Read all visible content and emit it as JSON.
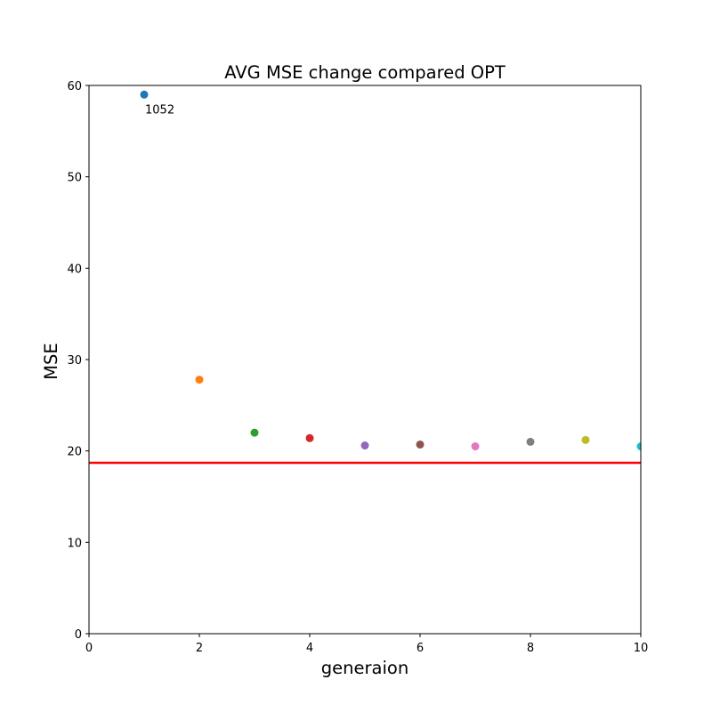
{
  "chart_data": {
    "type": "scatter",
    "title": "AVG MSE change compared OPT",
    "xlabel": "generaion",
    "ylabel": "MSE",
    "xlim": [
      0,
      10
    ],
    "ylim": [
      0,
      60
    ],
    "xticks": [
      "0",
      "2",
      "4",
      "6",
      "8",
      "10"
    ],
    "yticks": [
      "0",
      "10",
      "20",
      "30",
      "40",
      "50",
      "60"
    ],
    "points": [
      {
        "x": 1,
        "y": 59.0,
        "color": "#1f77b4"
      },
      {
        "x": 2,
        "y": 27.8,
        "color": "#ff7f0e"
      },
      {
        "x": 3,
        "y": 22.0,
        "color": "#2ca02c"
      },
      {
        "x": 4,
        "y": 21.4,
        "color": "#d62728"
      },
      {
        "x": 5,
        "y": 20.6,
        "color": "#9467bd"
      },
      {
        "x": 6,
        "y": 20.7,
        "color": "#8c564b"
      },
      {
        "x": 7,
        "y": 20.5,
        "color": "#e377c2"
      },
      {
        "x": 8,
        "y": 21.0,
        "color": "#7f7f7f"
      },
      {
        "x": 9,
        "y": 21.2,
        "color": "#bcbd22"
      },
      {
        "x": 10,
        "y": 20.5,
        "color": "#17becf"
      }
    ],
    "reference_line": {
      "y": 18.7,
      "color": "#ff0000"
    },
    "annotations": [
      {
        "text": "1052",
        "x": 1,
        "y": 59.0
      }
    ],
    "grid": false
  }
}
